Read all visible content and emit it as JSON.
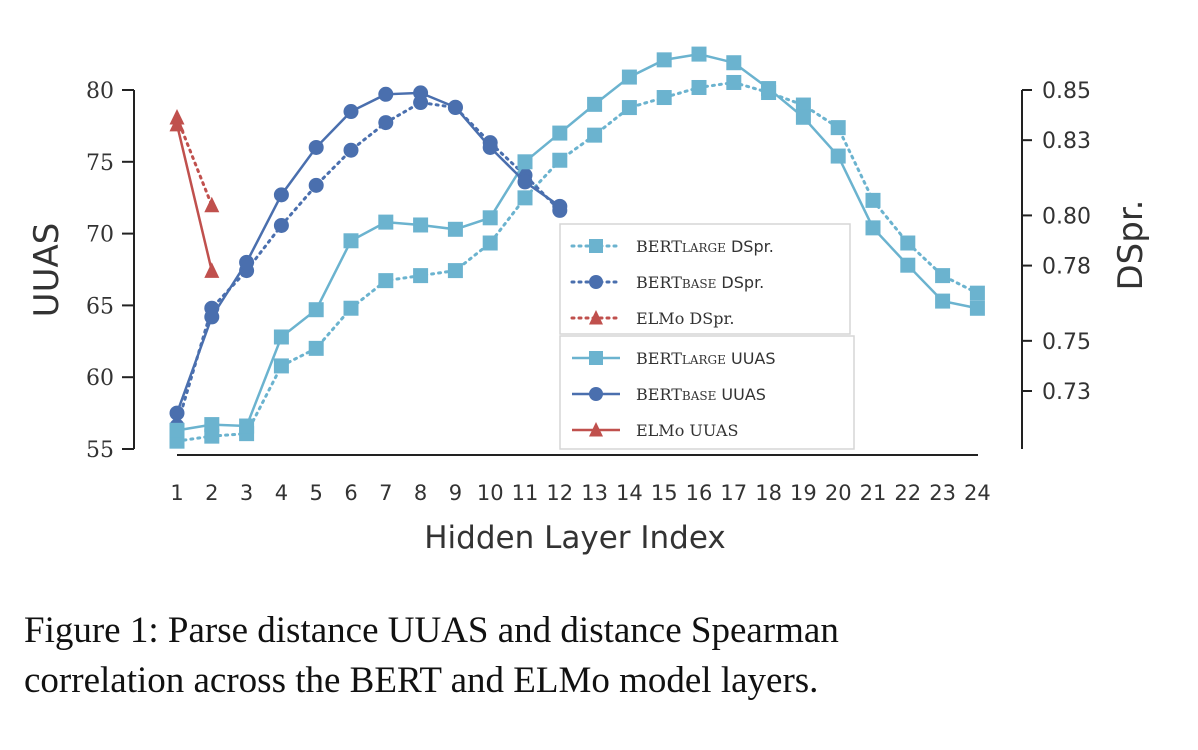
{
  "chart_data": {
    "type": "line",
    "xlabel": "Hidden Layer Index",
    "ylabel_left": "UUAS",
    "ylabel_right": "DSpr.",
    "x": [
      1,
      2,
      3,
      4,
      5,
      6,
      7,
      8,
      9,
      10,
      11,
      12,
      13,
      14,
      15,
      16,
      17,
      18,
      19,
      20,
      21,
      22,
      23,
      24
    ],
    "y_left_range": [
      55,
      81
    ],
    "y_left_ticks": [
      "55",
      "60",
      "65",
      "70",
      "75",
      "80"
    ],
    "y_right_range": [
      0.71,
      0.855
    ],
    "y_right_ticks": [
      "0.73",
      "0.75",
      "0.78",
      "0.80",
      "0.83",
      "0.85"
    ],
    "colors": {
      "bert_large": "#6bb3cf",
      "bert_base": "#4a6fae",
      "elmo": "#c0504d"
    },
    "series": [
      {
        "name": "BERTLARGE DSpr.",
        "legend_small": "LARGE",
        "legend_suffix": " DSpr.",
        "axis": "right",
        "color": "#6bb3cf",
        "marker": "square",
        "style": "dotted",
        "x": [
          1,
          2,
          3,
          4,
          5,
          6,
          7,
          8,
          9,
          10,
          11,
          12,
          13,
          14,
          15,
          16,
          17,
          18,
          19,
          20,
          21,
          22,
          23,
          24
        ],
        "values": [
          0.71,
          0.712,
          0.713,
          0.74,
          0.747,
          0.763,
          0.774,
          0.776,
          0.778,
          0.789,
          0.807,
          0.822,
          0.832,
          0.843,
          0.847,
          0.851,
          0.853,
          0.849,
          0.844,
          0.835,
          0.806,
          0.789,
          0.776,
          0.769
        ]
      },
      {
        "name": "BERTBASE DSpr.",
        "legend_small": "BASE",
        "legend_suffix": " DSpr.",
        "axis": "right",
        "color": "#4a6fae",
        "marker": "circle",
        "style": "dotted",
        "x": [
          1,
          2,
          3,
          4,
          5,
          6,
          7,
          8,
          9,
          10,
          11,
          12
        ],
        "values": [
          0.716,
          0.763,
          0.778,
          0.796,
          0.812,
          0.826,
          0.837,
          0.845,
          0.843,
          0.829,
          0.816,
          0.802
        ]
      },
      {
        "name": "ELMo DSpr.",
        "legend_small": "",
        "legend_suffix": "",
        "axis": "right",
        "color": "#c0504d",
        "marker": "triangle",
        "style": "dotted",
        "x": [
          1,
          2
        ],
        "values": [
          0.839,
          0.804
        ]
      },
      {
        "name": "BERTLARGE UUAS",
        "legend_small": "LARGE",
        "legend_suffix": " UUAS",
        "axis": "left",
        "color": "#6bb3cf",
        "marker": "square",
        "style": "solid",
        "x": [
          1,
          2,
          3,
          4,
          5,
          6,
          7,
          8,
          9,
          10,
          11,
          12,
          13,
          14,
          15,
          16,
          17,
          18,
          19,
          20,
          21,
          22,
          23,
          24
        ],
        "values": [
          56.3,
          56.7,
          56.6,
          62.8,
          64.7,
          69.5,
          70.8,
          70.6,
          70.3,
          71.1,
          75.0,
          77.0,
          79.0,
          80.9,
          82.1,
          82.5,
          81.9,
          80.1,
          78.1,
          75.4,
          70.4,
          67.8,
          65.3,
          64.8
        ]
      },
      {
        "name": "BERTBASE UUAS",
        "legend_small": "BASE",
        "legend_suffix": " UUAS",
        "axis": "left",
        "color": "#4a6fae",
        "marker": "circle",
        "style": "solid",
        "x": [
          1,
          2,
          3,
          4,
          5,
          6,
          7,
          8,
          9,
          10,
          11,
          12
        ],
        "values": [
          57.5,
          64.2,
          68.0,
          72.7,
          76.0,
          78.5,
          79.7,
          79.8,
          78.8,
          76.0,
          73.6,
          71.9
        ]
      },
      {
        "name": "ELMo UUAS",
        "legend_small": "",
        "legend_suffix": "",
        "axis": "left",
        "color": "#c0504d",
        "marker": "triangle",
        "style": "solid",
        "x": [
          1,
          2
        ],
        "values": [
          77.6,
          67.4
        ]
      }
    ]
  },
  "caption": {
    "line1": "Figure 1:   Parse distance UUAS and distance Spearman",
    "line2": "correlation across the BERT and ELMo model layers."
  }
}
